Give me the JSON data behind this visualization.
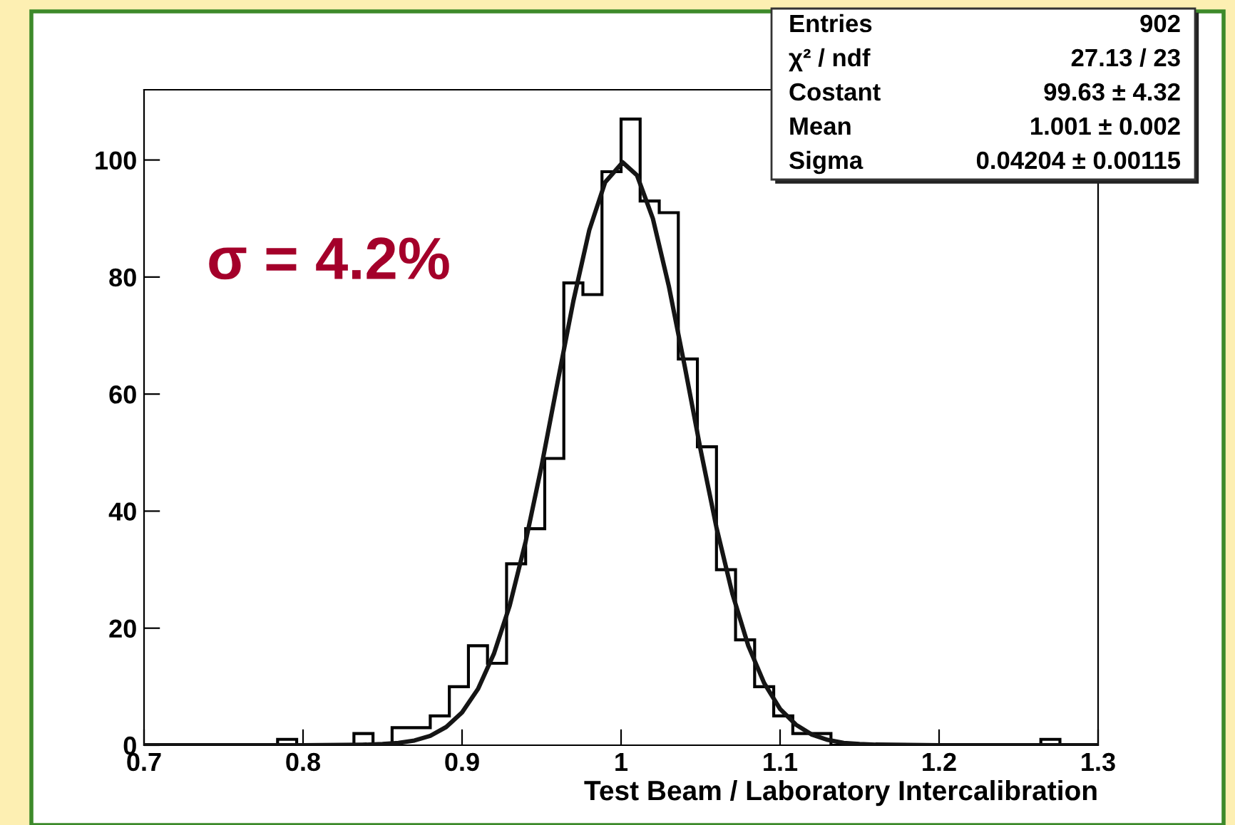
{
  "chart_data": {
    "type": "histogram",
    "xlabel": "Test Beam / Laboratory Intercalibration",
    "bins": [
      0.7,
      0.712,
      0.724,
      0.736,
      0.748,
      0.76,
      0.772,
      0.784,
      0.796,
      0.808,
      0.82,
      0.832,
      0.844,
      0.856,
      0.868,
      0.88,
      0.892,
      0.904,
      0.916,
      0.928,
      0.94,
      0.952,
      0.964,
      0.976,
      0.988,
      1.0,
      1.012,
      1.024,
      1.036,
      1.048,
      1.06,
      1.072,
      1.084,
      1.096,
      1.108,
      1.12,
      1.132,
      1.144,
      1.156,
      1.168,
      1.18,
      1.192,
      1.204,
      1.216,
      1.228,
      1.24,
      1.252,
      1.264,
      1.276,
      1.288,
      1.3
    ],
    "values": [
      0,
      0,
      0,
      0,
      0,
      0,
      0,
      1,
      0,
      0,
      0,
      2,
      0,
      3,
      3,
      5,
      10,
      17,
      14,
      31,
      37,
      49,
      79,
      77,
      98,
      107,
      93,
      91,
      66,
      51,
      30,
      18,
      10,
      5,
      2,
      2,
      0,
      0,
      0,
      0,
      0,
      0,
      0,
      0,
      0,
      0,
      0,
      1,
      0,
      0
    ],
    "color": "#000000",
    "series": [
      {
        "type": "line",
        "color": "#151515",
        "x": [
          0.7,
          0.8,
          0.84,
          0.85,
          0.86,
          0.87,
          0.88,
          0.89,
          0.9,
          0.91,
          0.92,
          0.93,
          0.94,
          0.95,
          0.96,
          0.97,
          0.98,
          0.99,
          1.001,
          1.01,
          1.02,
          1.03,
          1.04,
          1.05,
          1.06,
          1.07,
          1.08,
          1.09,
          1.1,
          1.11,
          1.12,
          1.13,
          1.14,
          1.15,
          1.16,
          1.2,
          1.3
        ],
        "values": [
          0,
          0,
          0.1,
          0.2,
          0.4,
          0.8,
          1.6,
          3.1,
          5.6,
          9.6,
          15.6,
          23.9,
          34.8,
          47.7,
          61.9,
          75.9,
          88,
          96.2,
          99.6,
          97.4,
          90,
          78.5,
          64.8,
          50.5,
          37.2,
          25.9,
          17,
          10.6,
          6.2,
          3.5,
          1.8,
          0.9,
          0.4,
          0.2,
          0.1,
          0,
          0
        ]
      }
    ],
    "xlim": [
      0.7,
      1.3
    ],
    "xticks": [
      0.7,
      0.8,
      0.9,
      1,
      1.1,
      1.2,
      1.3
    ],
    "ylim": [
      0,
      112
    ],
    "yticks": [
      0,
      20,
      40,
      60,
      80,
      100
    ],
    "grid": false,
    "annotations": [
      "σ = 4.2%",
      "Entries",
      "902",
      "χ² / ndf",
      "27.13 / 23",
      "Costant",
      "99.63 ± 4.32",
      "Mean",
      "1.001 ± 0.002",
      "Sigma",
      "0.04204 ± 0.00115"
    ]
  }
}
